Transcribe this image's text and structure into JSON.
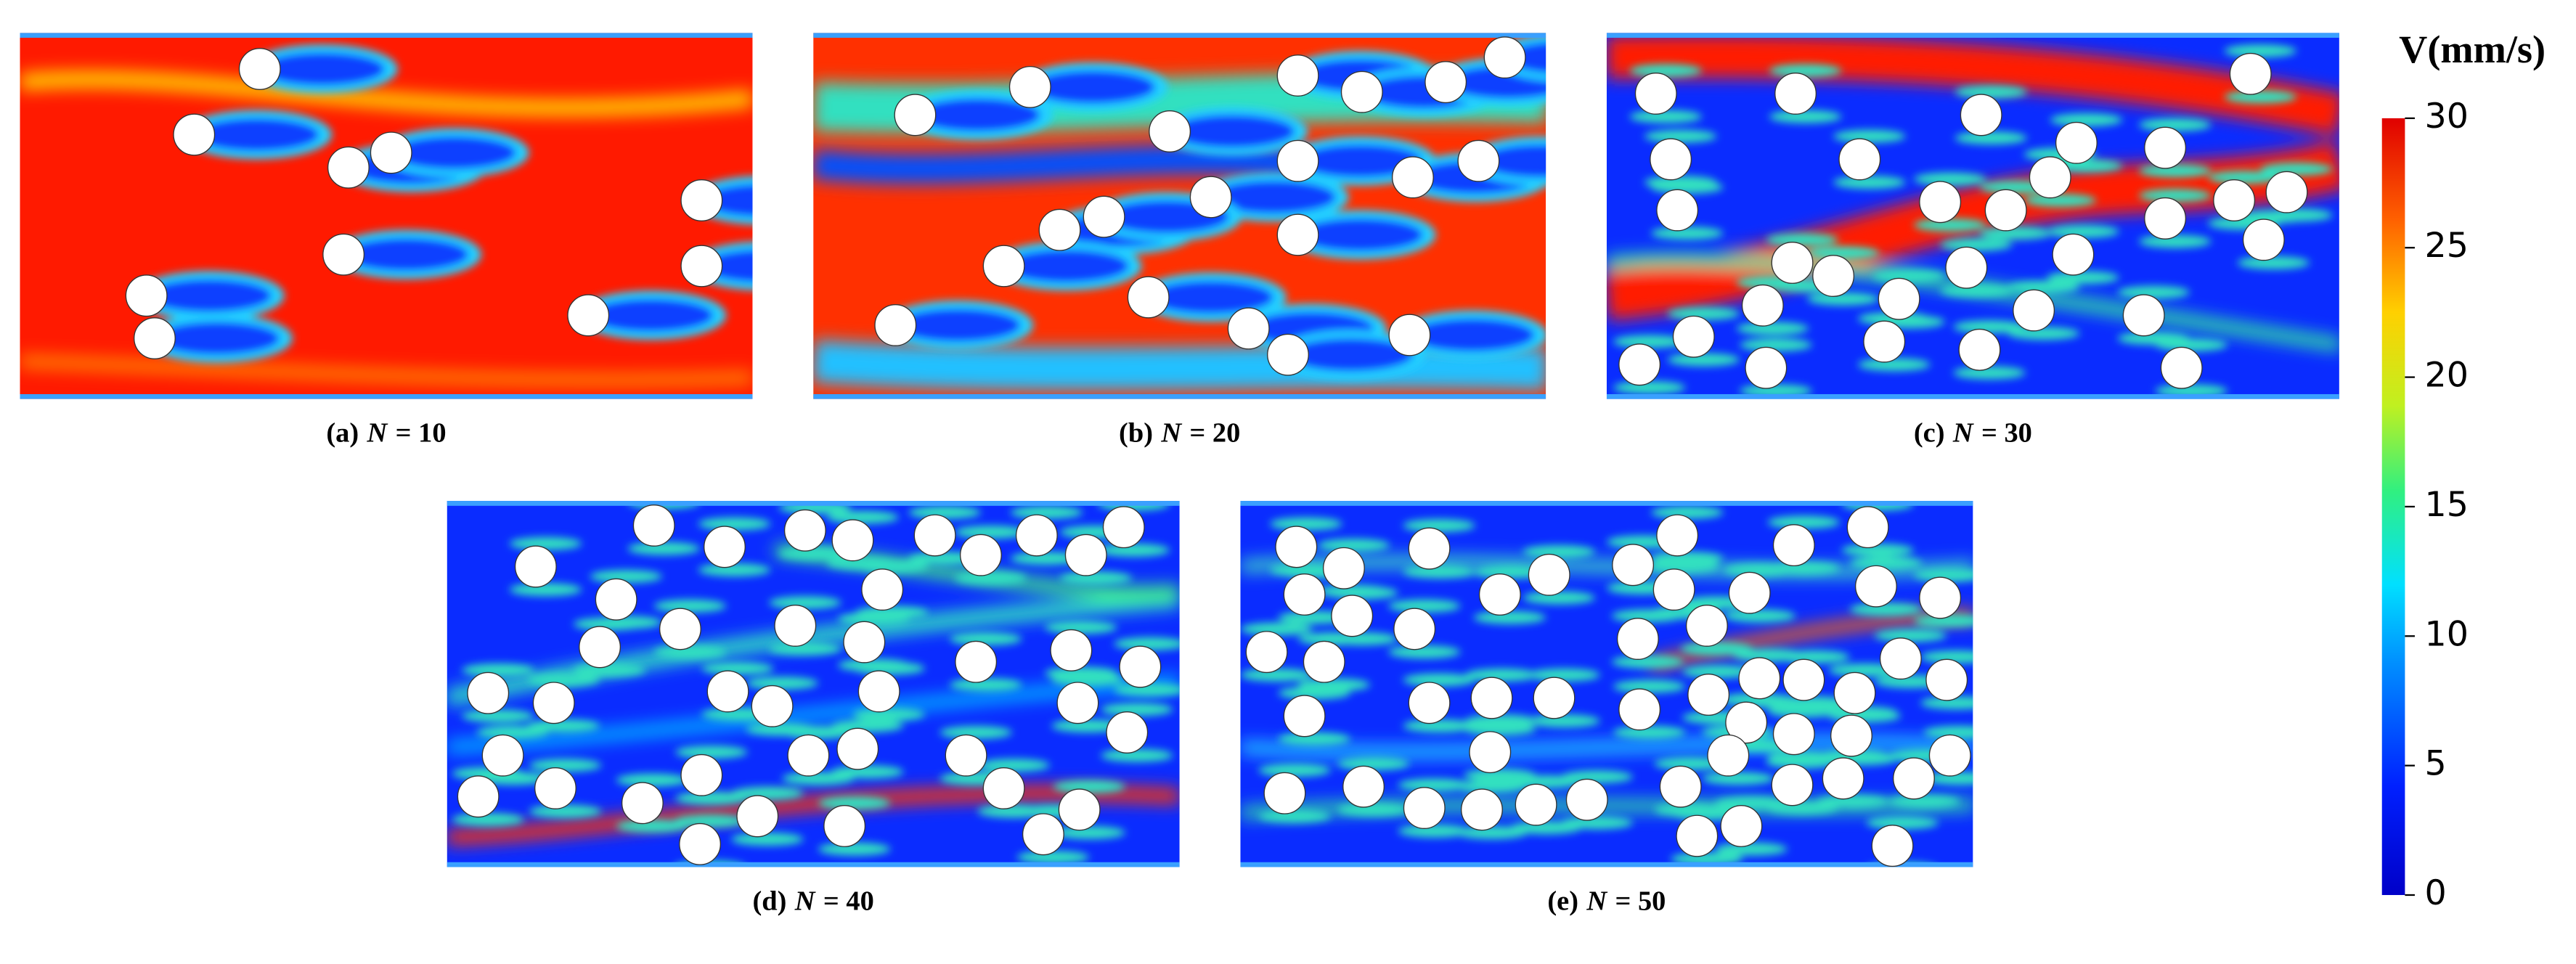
{
  "figure": {
    "colorbar": {
      "title": "V(mm/s)",
      "range": [
        0,
        30
      ],
      "ticks": [
        0,
        5,
        10,
        15,
        20,
        25,
        30
      ]
    },
    "panels": [
      {
        "label": "(a)",
        "symbol": "N",
        "equals": "= 10"
      },
      {
        "label": "(b)",
        "symbol": "N",
        "equals": "= 20"
      },
      {
        "label": "(c)",
        "symbol": "N",
        "equals": "= 30"
      },
      {
        "label": "(d)",
        "symbol": "N",
        "equals": "= 40"
      },
      {
        "label": "(e)",
        "symbol": "N",
        "equals": "= 50"
      }
    ]
  }
}
